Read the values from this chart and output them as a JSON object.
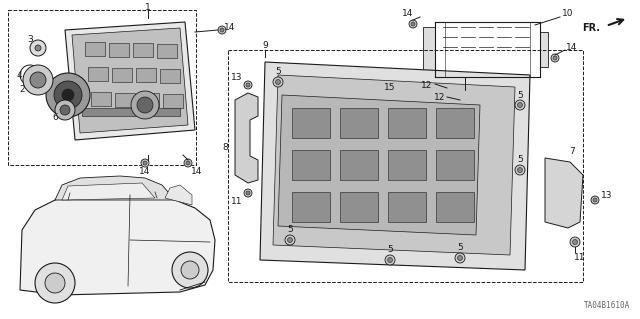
{
  "bg_color": "#ffffff",
  "fig_width": 6.4,
  "fig_height": 3.19,
  "dpi": 100,
  "watermark": "TA04B1610A",
  "line_color": "#1a1a1a",
  "label_fontsize": 6.5
}
